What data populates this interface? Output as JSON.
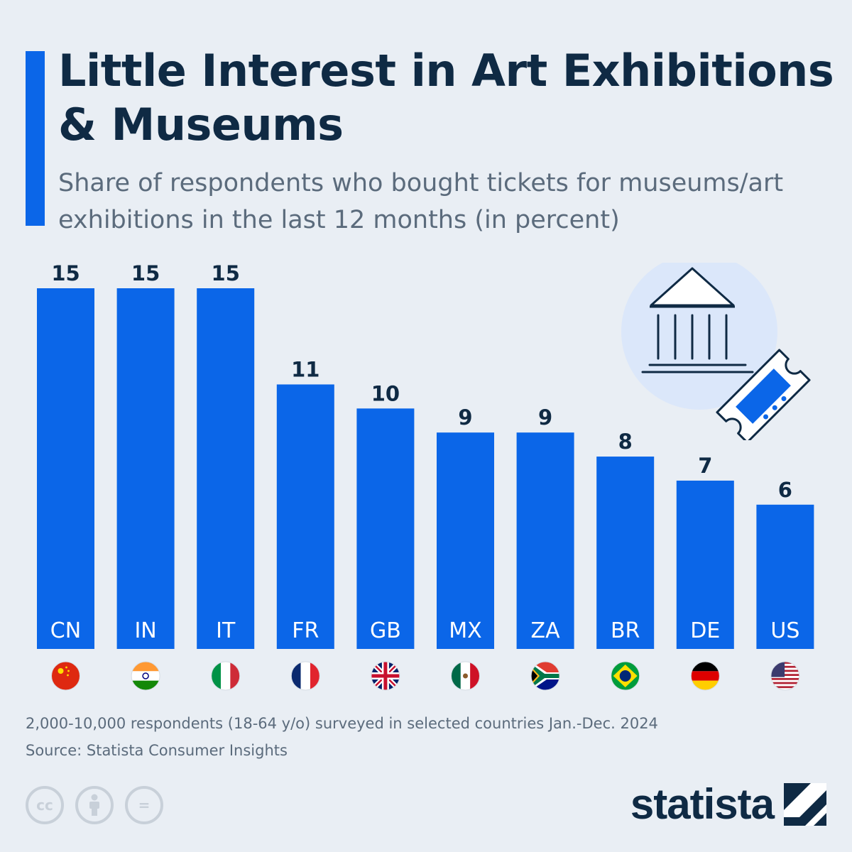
{
  "header": {
    "title": "Little Interest in Art Exhibitions & Museums",
    "subtitle": "Share of respondents who bought tickets for museums/art exhibitions in the last 12 months (in percent)"
  },
  "colors": {
    "bar": "#0b66e8",
    "title": "#0f2a44",
    "text_muted": "#5b6b7c",
    "background": "#e9eef4"
  },
  "chart_data": {
    "type": "bar",
    "title": "Little Interest in Art Exhibitions & Museums",
    "subtitle": "Share of respondents who bought tickets for museums/art exhibitions in the last 12 months (in percent)",
    "categories": [
      "CN",
      "IN",
      "IT",
      "FR",
      "GB",
      "MX",
      "ZA",
      "BR",
      "DE",
      "US"
    ],
    "values": [
      15,
      15,
      15,
      11,
      10,
      9,
      9,
      8,
      7,
      6
    ],
    "ylim": [
      0,
      15
    ],
    "grid": false,
    "data_labels": true,
    "flags": [
      "china-flag",
      "india-flag",
      "italy-flag",
      "france-flag",
      "uk-flag",
      "mexico-flag",
      "south-africa-flag",
      "brazil-flag",
      "germany-flag",
      "usa-flag"
    ]
  },
  "footer": {
    "note": "2,000-10,000 respondents (18-64 y/o) surveyed in selected countries Jan.-Dec. 2024",
    "source": "Source: Statista Consumer Insights",
    "license_icons": [
      "cc-icon",
      "attribution-icon",
      "no-derivatives-icon"
    ],
    "license_labels": [
      "cc",
      "",
      "="
    ],
    "brand": "statista"
  }
}
